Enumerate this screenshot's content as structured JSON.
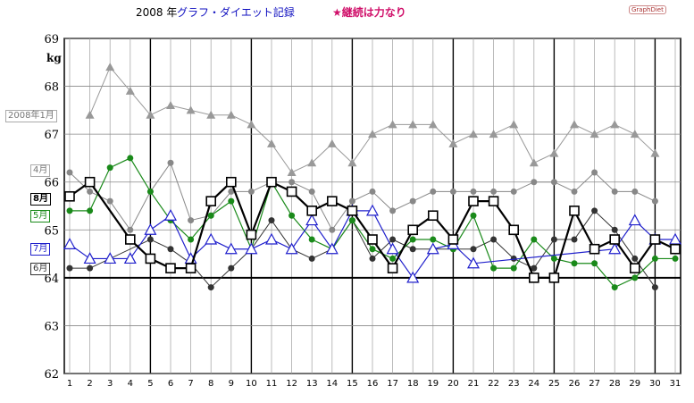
{
  "header": {
    "year": "2008 年",
    "title": "グラフ・ダイエット記録",
    "note": "★継続は力なり",
    "brand": "GraphDiet"
  },
  "month_labels": {
    "jan": "2008年1月",
    "apr": "4月",
    "aug": "8月",
    "may": "5月",
    "jul": "7月",
    "jun": "6月"
  },
  "colors": {
    "jan": "#999999",
    "apr": "#888888",
    "aug": "#000000",
    "may": "#1a8a1a",
    "jul": "#2020cc",
    "jun": "#333333",
    "baseline": "#000000"
  },
  "chart_data": {
    "type": "line",
    "ylabel": "kg",
    "ylim": [
      62,
      69
    ],
    "yticks": [
      "62",
      "63",
      "64",
      "65",
      "66",
      "67",
      "68",
      "69"
    ],
    "x": [
      "1",
      "2",
      "3",
      "4",
      "5",
      "6",
      "7",
      "8",
      "9",
      "10",
      "11",
      "12",
      "13",
      "14",
      "15",
      "16",
      "17",
      "18",
      "19",
      "20",
      "21",
      "22",
      "23",
      "24",
      "25",
      "26",
      "27",
      "28",
      "29",
      "30",
      "31"
    ],
    "baseline": 64,
    "series": [
      {
        "name": "2008年1月",
        "marker": "triangle-filled",
        "values": [
          null,
          67.4,
          68.4,
          67.9,
          67.4,
          67.6,
          67.5,
          67.4,
          67.4,
          67.2,
          66.8,
          66.2,
          66.4,
          66.8,
          66.4,
          67.0,
          67.2,
          67.2,
          67.2,
          66.8,
          67.0,
          67.0,
          67.2,
          66.4,
          66.6,
          67.2,
          67.0,
          67.2,
          67.0,
          66.6,
          null
        ]
      },
      {
        "name": "4月",
        "marker": "circle-filled",
        "values": [
          66.2,
          65.8,
          65.6,
          65.0,
          65.8,
          66.4,
          65.2,
          65.3,
          65.8,
          65.8,
          66.0,
          66.0,
          65.8,
          65.0,
          65.6,
          65.8,
          65.4,
          65.6,
          65.8,
          65.8,
          65.8,
          65.8,
          65.8,
          66.0,
          66.0,
          65.8,
          66.2,
          65.8,
          65.8,
          65.6,
          null
        ]
      },
      {
        "name": "8月",
        "marker": "square-open",
        "values": [
          65.7,
          66.0,
          null,
          64.8,
          64.4,
          64.2,
          64.2,
          65.6,
          66.0,
          64.9,
          66.0,
          65.8,
          65.4,
          65.6,
          65.4,
          64.8,
          64.2,
          65.0,
          65.3,
          64.8,
          65.6,
          65.6,
          65.0,
          64.0,
          64.0,
          65.4,
          64.6,
          64.8,
          64.2,
          64.8,
          64.6
        ]
      },
      {
        "name": "5月",
        "marker": "circle-filled",
        "values": [
          65.4,
          65.4,
          66.3,
          66.5,
          65.8,
          65.2,
          64.8,
          65.3,
          65.6,
          64.6,
          66.0,
          65.3,
          64.8,
          64.6,
          65.2,
          64.6,
          64.4,
          64.8,
          64.8,
          64.6,
          65.3,
          64.2,
          64.2,
          64.8,
          64.4,
          64.3,
          64.3,
          63.8,
          64.0,
          64.4,
          64.4
        ]
      },
      {
        "name": "7月",
        "marker": "triangle-open",
        "values": [
          64.7,
          64.4,
          64.4,
          64.4,
          65.0,
          65.3,
          64.4,
          64.8,
          64.6,
          64.6,
          64.8,
          64.6,
          65.2,
          64.6,
          65.4,
          65.4,
          64.6,
          64.0,
          64.6,
          64.7,
          64.3,
          null,
          null,
          null,
          null,
          null,
          null,
          64.6,
          65.2,
          64.8,
          64.8
        ]
      },
      {
        "name": "6月",
        "marker": "circle-filled",
        "values": [
          64.2,
          64.2,
          64.4,
          null,
          64.8,
          64.6,
          64.3,
          63.8,
          64.2,
          64.6,
          65.2,
          64.6,
          64.4,
          64.6,
          65.2,
          64.4,
          64.8,
          64.6,
          64.6,
          64.6,
          64.6,
          64.8,
          64.4,
          64.2,
          64.8,
          64.8,
          65.4,
          65.0,
          64.4,
          63.8,
          null
        ]
      }
    ]
  }
}
